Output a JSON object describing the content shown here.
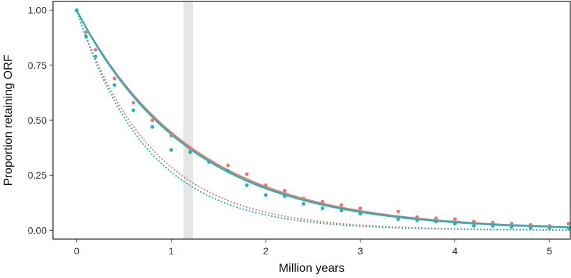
{
  "chart_data": {
    "type": "line",
    "xlabel": "Million years",
    "ylabel": "Proportion retaining ORF",
    "xlim": [
      -0.25,
      5.22
    ],
    "ylim": [
      -0.04,
      1.04
    ],
    "x_ticks": [
      "0",
      "1",
      "2",
      "3",
      "4",
      "5"
    ],
    "x_tick_values": [
      0,
      1,
      2,
      3,
      4,
      5
    ],
    "y_ticks": [
      "0.00",
      "0.25",
      "0.50",
      "0.75",
      "1.00"
    ],
    "y_tick_values": [
      0,
      0.25,
      0.5,
      0.75,
      1.0
    ],
    "grid": false,
    "highlight_band": [
      1.13,
      1.23
    ],
    "colors": {
      "salmon": "#e8776c",
      "teal": "#1fb3bc",
      "band": "#e5e5e5"
    },
    "series": [
      {
        "color": "salmon",
        "fit_rate": 0.81,
        "points": [
          [
            0,
            1.0
          ],
          [
            0.1,
            0.9
          ],
          [
            0.2,
            0.82
          ],
          [
            0.4,
            0.69
          ],
          [
            0.6,
            0.58
          ],
          [
            0.8,
            0.5
          ],
          [
            1.0,
            0.43
          ],
          [
            1.2,
            0.37
          ],
          [
            1.4,
            0.31
          ],
          [
            1.6,
            0.295
          ],
          [
            1.8,
            0.255
          ],
          [
            2.0,
            0.205
          ],
          [
            2.2,
            0.18
          ],
          [
            2.4,
            0.145
          ],
          [
            2.6,
            0.13
          ],
          [
            2.8,
            0.115
          ],
          [
            3.0,
            0.1
          ],
          [
            3.4,
            0.085
          ],
          [
            3.6,
            0.06
          ],
          [
            3.8,
            0.055
          ],
          [
            4.0,
            0.05
          ],
          [
            4.2,
            0.04
          ],
          [
            4.4,
            0.035
          ],
          [
            4.6,
            0.03
          ],
          [
            4.8,
            0.025
          ],
          [
            5.0,
            0.02
          ],
          [
            5.2,
            0.03
          ]
        ]
      },
      {
        "color": "teal",
        "fit_rate": 0.83,
        "points": [
          [
            0,
            1.0
          ],
          [
            0.1,
            0.88
          ],
          [
            0.2,
            0.79
          ],
          [
            0.4,
            0.66
          ],
          [
            0.6,
            0.545
          ],
          [
            0.8,
            0.47
          ],
          [
            1.0,
            0.365
          ],
          [
            1.2,
            0.355
          ],
          [
            1.4,
            0.31
          ],
          [
            1.6,
            0.27
          ],
          [
            1.8,
            0.205
          ],
          [
            2.0,
            0.16
          ],
          [
            2.2,
            0.155
          ],
          [
            2.4,
            0.12
          ],
          [
            2.6,
            0.1
          ],
          [
            2.8,
            0.09
          ],
          [
            3.0,
            0.075
          ],
          [
            3.4,
            0.05
          ],
          [
            3.6,
            0.045
          ],
          [
            3.8,
            0.04
          ],
          [
            4.0,
            0.03
          ],
          [
            4.2,
            0.02
          ],
          [
            4.4,
            0.02
          ],
          [
            4.6,
            0.015
          ],
          [
            4.8,
            0.012
          ],
          [
            5.0,
            0.01
          ],
          [
            5.2,
            0.01
          ]
        ]
      },
      {
        "color": "salmon",
        "style": "dotted",
        "fit_rate": 1.25,
        "points": []
      },
      {
        "color": "teal",
        "style": "dotted",
        "fit_rate": 1.33,
        "points": []
      }
    ]
  }
}
